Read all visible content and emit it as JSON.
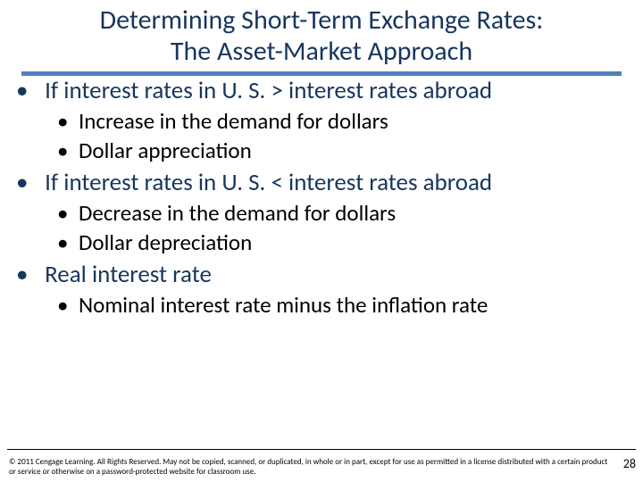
{
  "title_line1": "Determining Short-Term Exchange Rates:",
  "title_line2": "The Asset-Market Approach",
  "bullets": {
    "b1": "If interest rates in U. S. > interest rates abroad",
    "b1a": "Increase in the demand for dollars",
    "b1b": "Dollar appreciation",
    "b2": "If interest rates in U. S. < interest rates abroad",
    "b2a": "Decrease in the demand for dollars",
    "b2b": "Dollar depreciation",
    "b3": "Real interest rate",
    "b3a": "Nominal interest rate minus the inflation rate"
  },
  "footer": "© 2011 Cengage Learning. All Rights Reserved. May not be copied, scanned, or duplicated, in whole or in part, except for use as permitted in a license distributed with a certain product or service or otherwise on a password-protected website for classroom use.",
  "page_number": "28",
  "colors": {
    "heading": "#17365d",
    "underline": "#4f81bd"
  }
}
